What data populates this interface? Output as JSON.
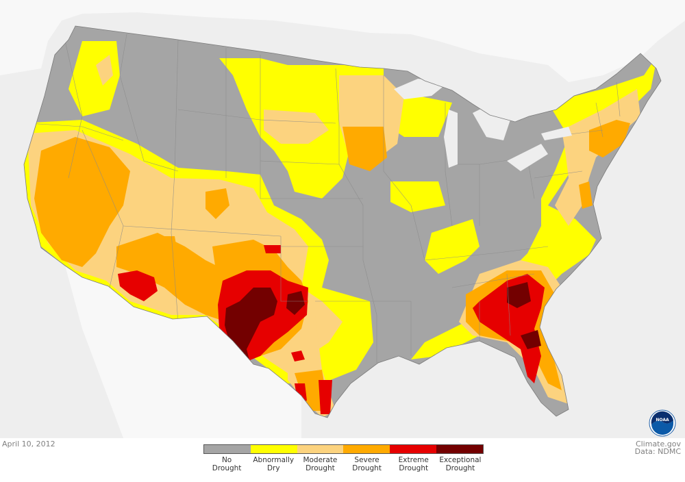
{
  "date": "April 10, 2012",
  "credits": {
    "site": "Climate.gov",
    "data": "Data: NDMC"
  },
  "logo": {
    "name": "noaa-logo",
    "text": "NOAA"
  },
  "legend": [
    {
      "line1": "No",
      "line2": "Drought",
      "color": "#a5a5a5"
    },
    {
      "line1": "Abnormally",
      "line2": "Dry",
      "color": "#ffff00"
    },
    {
      "line1": "Moderate",
      "line2": "Drought",
      "color": "#fcd37f"
    },
    {
      "line1": "Severe",
      "line2": "Drought",
      "color": "#ffaa00"
    },
    {
      "line1": "Extreme",
      "line2": "Drought",
      "color": "#e60000"
    },
    {
      "line1": "Exceptional",
      "line2": "Drought",
      "color": "#730000"
    }
  ],
  "colors": {
    "background": "#eeeeee",
    "land_neighbor": "#f8f8f8",
    "no_drought": "#a5a5a5",
    "abnormally_dry": "#ffff00",
    "moderate": "#fcd37f",
    "severe": "#ffaa00",
    "extreme": "#e60000",
    "exceptional": "#730000"
  }
}
